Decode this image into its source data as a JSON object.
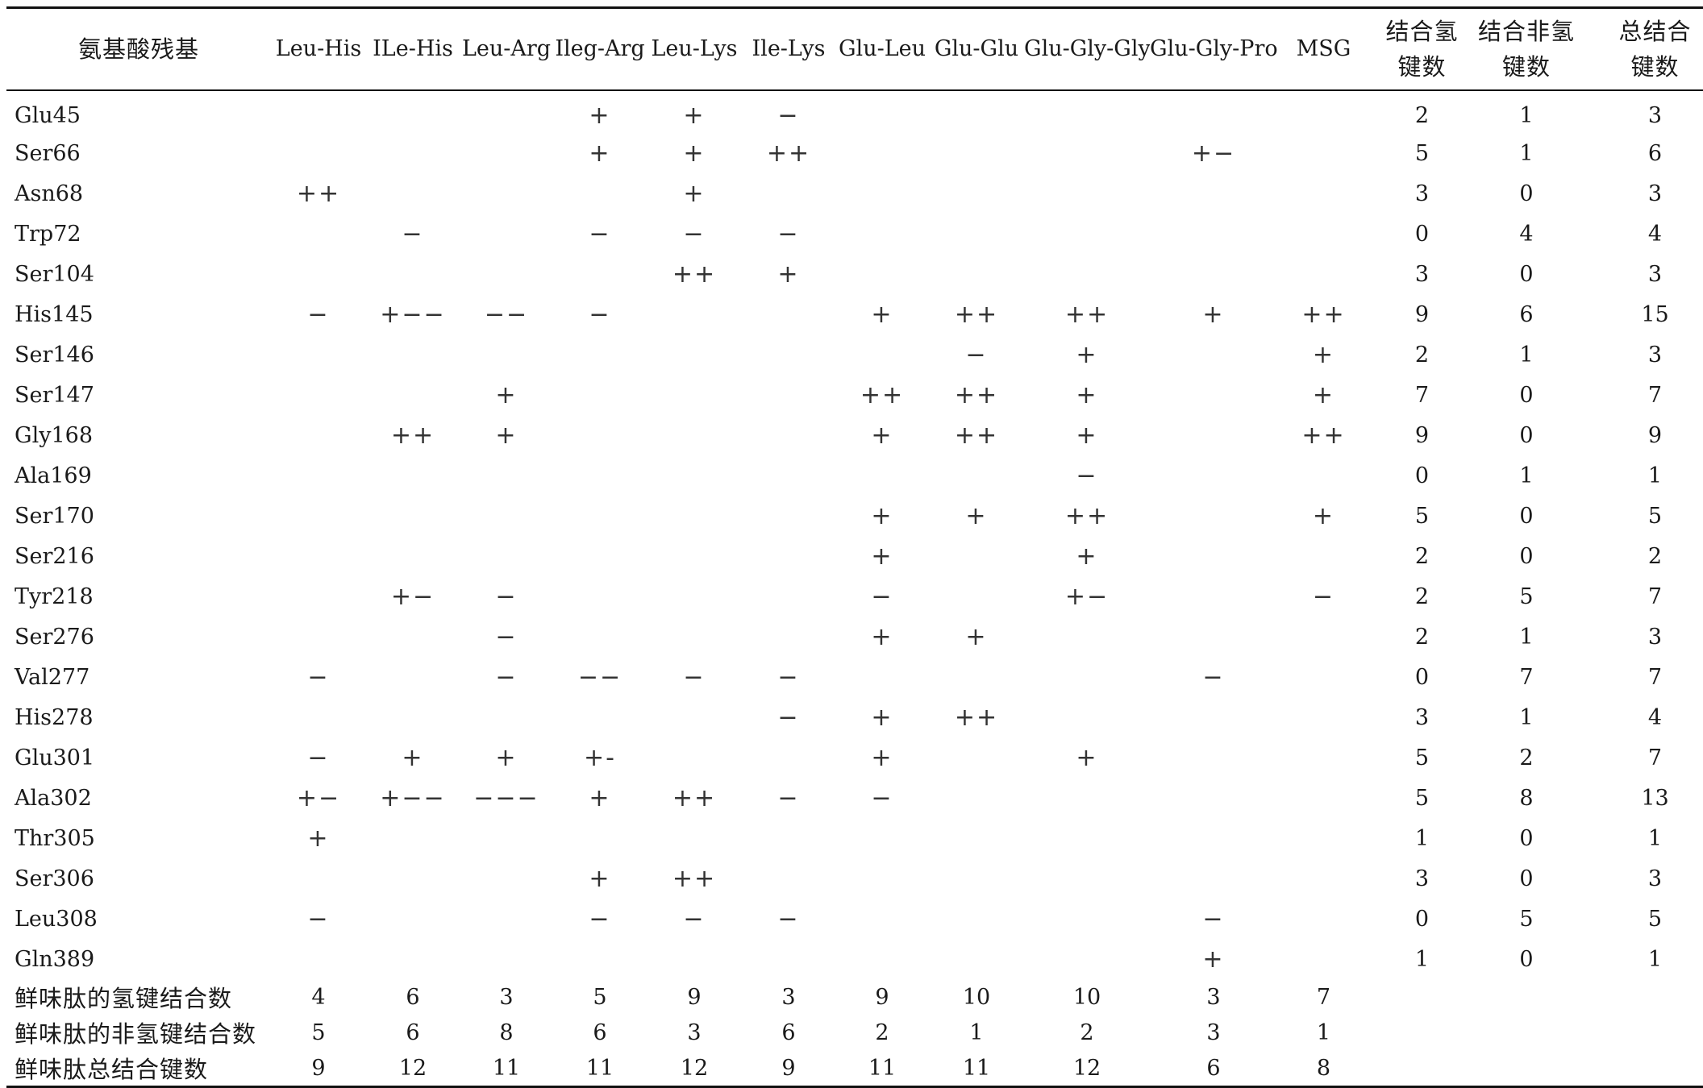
{
  "table": {
    "corner_header": "氨基酸残基",
    "peptide_headers": [
      "Leu-His",
      "ILe-His",
      "Leu-Arg",
      "Ileg-Arg",
      "Leu-Lys",
      "Ile-Lys",
      "Glu-Leu",
      "Glu-Glu",
      "Glu-Gly-Gly",
      "Glu-Gly-Pro",
      "MSG"
    ],
    "count_headers": [
      {
        "line1": "结合氢",
        "line2": "键数"
      },
      {
        "line1": "结合非氢",
        "line2": "键数"
      },
      {
        "line1": "总结合",
        "line2": "键数"
      }
    ],
    "rows": [
      {
        "residue": "Glu45",
        "marks": [
          "",
          "",
          "",
          "+",
          "+",
          "−",
          "",
          "",
          "",
          "",
          ""
        ],
        "counts": [
          "2",
          "1",
          "3"
        ]
      },
      {
        "residue": "Ser66",
        "marks": [
          "",
          "",
          "",
          "+",
          "+",
          "++",
          "",
          "",
          "",
          "+−",
          ""
        ],
        "counts": [
          "5",
          "1",
          "6"
        ]
      },
      {
        "residue": "Asn68",
        "marks": [
          "++",
          "",
          "",
          "",
          "+",
          "",
          "",
          "",
          "",
          "",
          ""
        ],
        "counts": [
          "3",
          "0",
          "3"
        ]
      },
      {
        "residue": "Trp72",
        "marks": [
          "",
          "−",
          "",
          "−",
          "−",
          "−",
          "",
          "",
          "",
          "",
          ""
        ],
        "counts": [
          "0",
          "4",
          "4"
        ]
      },
      {
        "residue": "Ser104",
        "marks": [
          "",
          "",
          "",
          "",
          "++",
          "+",
          "",
          "",
          "",
          "",
          ""
        ],
        "counts": [
          "3",
          "0",
          "3"
        ]
      },
      {
        "residue": "His145",
        "marks": [
          "−",
          "+−−",
          "−−",
          "−",
          "",
          "",
          "+",
          "++",
          "++",
          "+",
          "++"
        ],
        "counts": [
          "9",
          "6",
          "15"
        ]
      },
      {
        "residue": "Ser146",
        "marks": [
          "",
          "",
          "",
          "",
          "",
          "",
          "",
          "−",
          "+",
          "",
          "+"
        ],
        "counts": [
          "2",
          "1",
          "3"
        ]
      },
      {
        "residue": "Ser147",
        "marks": [
          "",
          "",
          "+",
          "",
          "",
          "",
          "++",
          "++",
          "+",
          "",
          "+"
        ],
        "counts": [
          "7",
          "0",
          "7"
        ]
      },
      {
        "residue": "Gly168",
        "marks": [
          "",
          "++",
          "+",
          "",
          "",
          "",
          "+",
          "++",
          "+",
          "",
          "++"
        ],
        "counts": [
          "9",
          "0",
          "9"
        ]
      },
      {
        "residue": "Ala169",
        "marks": [
          "",
          "",
          "",
          "",
          "",
          "",
          "",
          "",
          "−",
          "",
          ""
        ],
        "counts": [
          "0",
          "1",
          "1"
        ]
      },
      {
        "residue": "Ser170",
        "marks": [
          "",
          "",
          "",
          "",
          "",
          "",
          "+",
          "+",
          "++",
          "",
          "+"
        ],
        "counts": [
          "5",
          "0",
          "5"
        ]
      },
      {
        "residue": "Ser216",
        "marks": [
          "",
          "",
          "",
          "",
          "",
          "",
          "+",
          "",
          "+",
          "",
          ""
        ],
        "counts": [
          "2",
          "0",
          "2"
        ]
      },
      {
        "residue": "Tyr218",
        "marks": [
          "",
          "+−",
          "−",
          "",
          "",
          "",
          "−",
          "",
          "+−",
          "",
          "−"
        ],
        "counts": [
          "2",
          "5",
          "7"
        ]
      },
      {
        "residue": "Ser276",
        "marks": [
          "",
          "",
          "−",
          "",
          "",
          "",
          "+",
          "+",
          "",
          "",
          ""
        ],
        "counts": [
          "2",
          "1",
          "3"
        ]
      },
      {
        "residue": "Val277",
        "marks": [
          "−",
          "",
          "−",
          "−−",
          "−",
          "−",
          "",
          "",
          "",
          "−",
          ""
        ],
        "counts": [
          "0",
          "7",
          "7"
        ]
      },
      {
        "residue": "His278",
        "marks": [
          "",
          "",
          "",
          "",
          "",
          "−",
          "+",
          "++",
          "",
          "",
          ""
        ],
        "counts": [
          "3",
          "1",
          "4"
        ]
      },
      {
        "residue": "Glu301",
        "marks": [
          "−",
          "+",
          "+",
          "+-",
          "",
          "",
          "+",
          "",
          "+",
          "",
          ""
        ],
        "counts": [
          "5",
          "2",
          "7"
        ]
      },
      {
        "residue": "Ala302",
        "marks": [
          "+−",
          "+−−",
          "−−−",
          "+",
          "++",
          "−",
          "−",
          "",
          "",
          "",
          ""
        ],
        "counts": [
          "5",
          "8",
          "13"
        ]
      },
      {
        "residue": "Thr305",
        "marks": [
          "+",
          "",
          "",
          "",
          "",
          "",
          "",
          "",
          "",
          "",
          ""
        ],
        "counts": [
          "1",
          "0",
          "1"
        ]
      },
      {
        "residue": "Ser306",
        "marks": [
          "",
          "",
          "",
          "+",
          "++",
          "",
          "",
          "",
          "",
          "",
          ""
        ],
        "counts": [
          "3",
          "0",
          "3"
        ]
      },
      {
        "residue": "Leu308",
        "marks": [
          "−",
          "",
          "",
          "−",
          "−",
          "−",
          "",
          "",
          "",
          "−",
          ""
        ],
        "counts": [
          "0",
          "5",
          "5"
        ]
      },
      {
        "residue": "Gln389",
        "marks": [
          "",
          "",
          "",
          "",
          "",
          "",
          "",
          "",
          "",
          "+",
          ""
        ],
        "counts": [
          "1",
          "0",
          "1"
        ]
      }
    ],
    "summary_rows": [
      {
        "label": "鲜味肽的氢键结合数",
        "values": [
          "4",
          "6",
          "3",
          "5",
          "9",
          "3",
          "9",
          "10",
          "10",
          "3",
          "7"
        ]
      },
      {
        "label": "鲜味肽的非氢键结合数",
        "values": [
          "5",
          "6",
          "8",
          "6",
          "3",
          "6",
          "2",
          "1",
          "2",
          "3",
          "1"
        ]
      },
      {
        "label": "鲜味肽总结合键数",
        "values": [
          "9",
          "12",
          "11",
          "11",
          "12",
          "9",
          "11",
          "11",
          "12",
          "6",
          "8"
        ]
      }
    ]
  }
}
